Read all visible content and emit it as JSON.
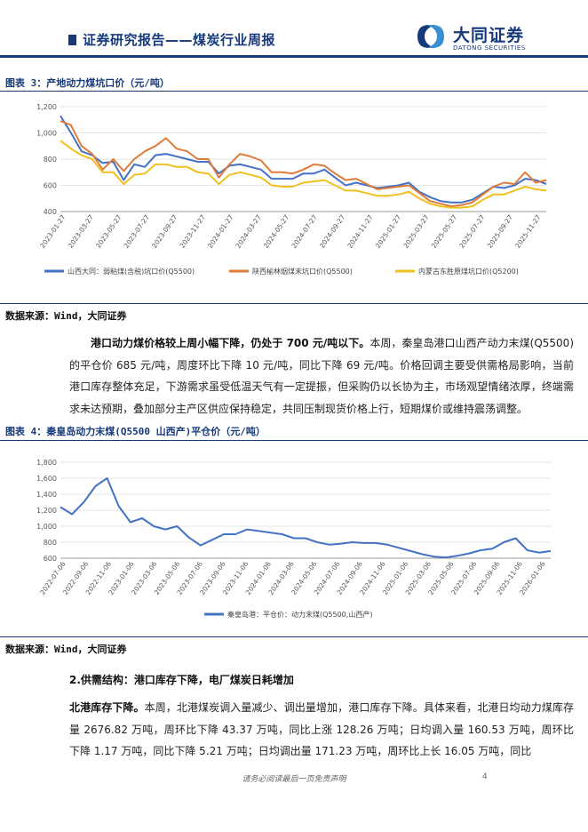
{
  "header": {
    "title": "证券研究报告——煤炭行业周报",
    "logo_cn": "大同证券",
    "logo_en": "DATONG SECURITIES"
  },
  "figure3": {
    "title": "图表 3：产地动力煤坑口价（元/吨）",
    "source": "数据来源：Wind，大同证券",
    "chart_data": {
      "type": "line",
      "ylim": [
        400,
        1200
      ],
      "yticks": [
        "1,200",
        "1,000",
        "800",
        "600",
        "400"
      ],
      "xticks": [
        "2023-01-27",
        "2023-03-27",
        "2023-05-27",
        "2023-07-27",
        "2023-09-27",
        "2023-11-27",
        "2024-01-27",
        "2024-03-27",
        "2024-05-27",
        "2024-07-27",
        "2024-09-27",
        "2024-11-27",
        "2025-01-27",
        "2025-03-27",
        "2025-05-27",
        "2025-07-27",
        "2025-09-27",
        "2025-11-27"
      ],
      "series": [
        {
          "name": "山西大同：弱粘煤(含税)坑口价(Q5500)",
          "color": "#4472c4",
          "values": [
            1130,
            1000,
            860,
            830,
            770,
            780,
            640,
            760,
            740,
            830,
            840,
            820,
            800,
            780,
            780,
            690,
            750,
            760,
            740,
            720,
            650,
            650,
            650,
            690,
            690,
            720,
            660,
            600,
            620,
            600,
            580,
            590,
            600,
            620,
            550,
            510,
            480,
            470,
            470,
            490,
            540,
            590,
            580,
            600,
            650,
            640,
            610
          ]
        },
        {
          "name": "陕西榆林烟煤末坑口价(Q5500)",
          "color": "#e07b39",
          "values": [
            1090,
            1060,
            900,
            840,
            720,
            800,
            710,
            800,
            860,
            900,
            960,
            880,
            860,
            800,
            800,
            660,
            760,
            840,
            820,
            790,
            700,
            700,
            690,
            720,
            760,
            750,
            690,
            640,
            650,
            610,
            570,
            580,
            590,
            600,
            540,
            480,
            460,
            440,
            450,
            470,
            530,
            590,
            620,
            610,
            700,
            620,
            640
          ]
        },
        {
          "name": "内蒙古东胜原煤坑口价(Q5200)",
          "color": "#f0c020",
          "values": [
            940,
            880,
            830,
            800,
            700,
            700,
            610,
            680,
            690,
            760,
            760,
            740,
            740,
            700,
            690,
            610,
            680,
            700,
            680,
            660,
            600,
            590,
            590,
            620,
            630,
            640,
            600,
            560,
            560,
            540,
            520,
            520,
            530,
            550,
            500,
            460,
            440,
            430,
            430,
            440,
            490,
            530,
            530,
            560,
            590,
            570,
            560
          ]
        }
      ]
    }
  },
  "para1": {
    "lead": "港口动力煤价格较上周小幅下降，仍处于 700 元/吨以下。",
    "text": "本周，秦皇岛港口山西产动力末煤(Q5500)的平仓价 685 元/吨，周度环比下降 10 元/吨，同比下降 69 元/吨。价格回调主要受供需格局影响，当前港口库存整体充足，下游需求虽受低温天气有一定提振，但采购仍以长协为主，市场观望情绪浓厚，终端需求未达预期，叠加部分主产区供应保持稳定，共同压制现货价格上行，短期煤价或维持震荡调整。"
  },
  "figure4": {
    "title": "图表 4：秦皇岛动力末煤(Q5500 山西产)平仓价（元/吨）",
    "source": "数据来源：Wind，大同证券",
    "chart_data": {
      "type": "line",
      "ylim": [
        600,
        1800
      ],
      "yticks": [
        "1,800",
        "1,600",
        "1,400",
        "1,200",
        "1,000",
        "800",
        "600"
      ],
      "xticks": [
        "2022-07-06",
        "2022-09-06",
        "2022-11-06",
        "2023-01-06",
        "2023-03-06",
        "2023-05-06",
        "2023-07-06",
        "2023-09-06",
        "2023-11-06",
        "2024-01-06",
        "2024-03-06",
        "2024-05-06",
        "2024-07-06",
        "2024-09-06",
        "2024-11-06",
        "2025-01-06",
        "2025-03-06",
        "2025-05-06",
        "2025-07-06",
        "2025-09-06",
        "2025-11-06",
        "2026-01-06"
      ],
      "series": [
        {
          "name": "秦皇岛港：平仓价：动力末煤(Q5500,山西产)",
          "color": "#4472c4",
          "values": [
            1240,
            1150,
            1300,
            1500,
            1600,
            1250,
            1050,
            1100,
            1000,
            960,
            1000,
            860,
            760,
            830,
            900,
            900,
            960,
            940,
            920,
            900,
            850,
            850,
            800,
            770,
            780,
            800,
            790,
            790,
            770,
            730,
            690,
            650,
            620,
            610,
            630,
            660,
            700,
            720,
            800,
            850,
            700,
            670,
            690
          ]
        }
      ]
    }
  },
  "section2": {
    "heading": "2.供需结构：港口库存下降，电厂煤炭日耗增加",
    "lead": "北港库存下降。",
    "text": "本周，北港煤炭调入量减少、调出量增加，港口库存下降。具体来看，北港日均动力煤库存量 2676.82 万吨，周环比下降 43.37 万吨，同比上涨 128.26 万吨；日均调入量 160.53 万吨，周环比下降 1.17 万吨，同比下降 5.21 万吨；日均调出量 171.23 万吨，周环比上长 16.05 万吨，同比"
  },
  "footer": {
    "disclaimer": "请务必阅读最后一页免责声明",
    "page": "4"
  }
}
